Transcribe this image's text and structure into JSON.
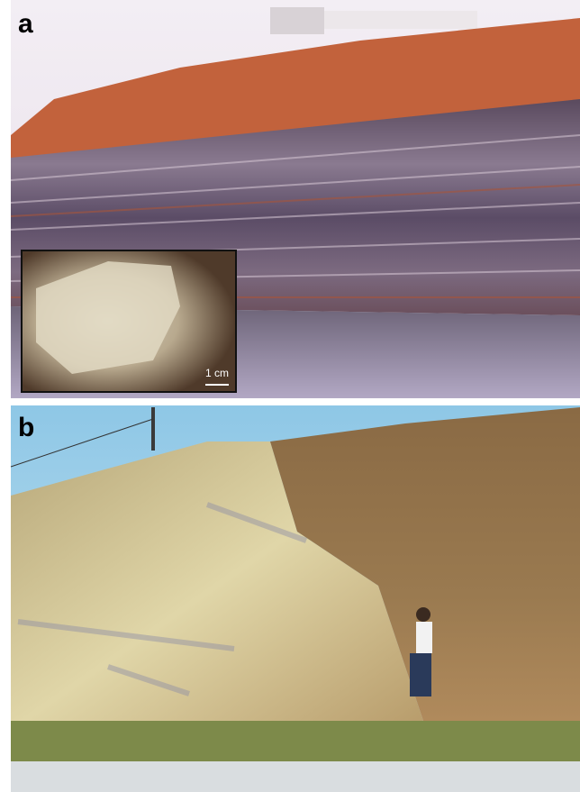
{
  "panels": [
    {
      "label": "a",
      "inset": {
        "scale_label": "1 cm"
      }
    },
    {
      "label": "b"
    }
  ]
}
